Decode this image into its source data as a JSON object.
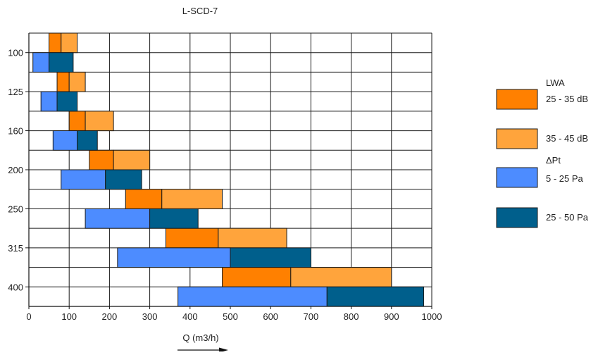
{
  "chart_data": {
    "type": "bar",
    "orientation": "horizontal-range",
    "title": "L-SCD-7",
    "xlabel": "Q (m3/h)",
    "ylabel": "",
    "xlim": [
      0,
      1000
    ],
    "xticks": [
      0,
      100,
      200,
      300,
      400,
      500,
      600,
      700,
      800,
      900,
      1000
    ],
    "grid": true,
    "categories": [
      "100",
      "125",
      "160",
      "200",
      "250",
      "315",
      "400"
    ],
    "rows_per_category": [
      "LWA",
      "ΔPt"
    ],
    "series": [
      {
        "name": "25 - 35 dB",
        "group": "LWA",
        "color": "#ff8000",
        "ranges": [
          [
            50,
            80
          ],
          [
            70,
            100
          ],
          [
            100,
            140
          ],
          [
            150,
            210
          ],
          [
            240,
            330
          ],
          [
            340,
            470
          ],
          [
            480,
            650
          ]
        ]
      },
      {
        "name": "35 - 45 dB",
        "group": "LWA",
        "color": "#ffa43c",
        "ranges": [
          [
            80,
            120
          ],
          [
            100,
            140
          ],
          [
            140,
            210
          ],
          [
            210,
            300
          ],
          [
            330,
            480
          ],
          [
            470,
            640
          ],
          [
            650,
            900
          ]
        ]
      },
      {
        "name": "5 - 25 Pa",
        "group": "ΔPt",
        "color": "#4d8cff",
        "ranges": [
          [
            10,
            50
          ],
          [
            30,
            70
          ],
          [
            60,
            120
          ],
          [
            80,
            190
          ],
          [
            140,
            300
          ],
          [
            220,
            500
          ],
          [
            370,
            740
          ]
        ]
      },
      {
        "name": "25 - 50 Pa",
        "group": "ΔPt",
        "color": "#005f8c",
        "ranges": [
          [
            50,
            110
          ],
          [
            70,
            120
          ],
          [
            120,
            170
          ],
          [
            190,
            280
          ],
          [
            300,
            420
          ],
          [
            500,
            700
          ],
          [
            740,
            980
          ]
        ]
      }
    ],
    "legend": {
      "placement": "right",
      "headings": [
        {
          "text": "LWA",
          "before_series": 0
        },
        {
          "text": "ΔPt",
          "before_series": 2
        }
      ]
    }
  }
}
